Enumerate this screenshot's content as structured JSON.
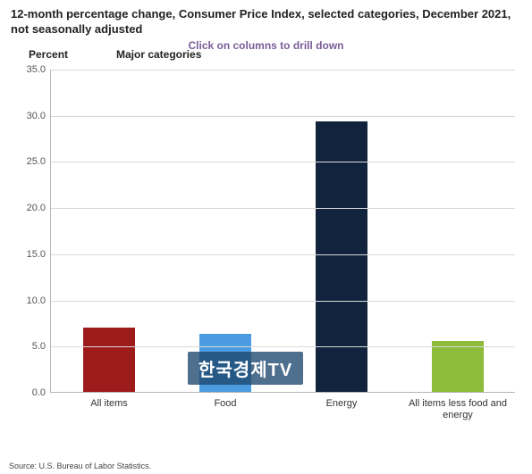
{
  "title": "12-month percentage change, Consumer Price Index, selected categories, December 2021, not seasonally adjusted",
  "drill_hint": "Click on columns to drill down",
  "legend_label": "Major categories",
  "ylabel": "Percent",
  "source": "Source: U.S. Bureau of Labor Statistics.",
  "watermark": "한국경제TV",
  "chart": {
    "type": "bar",
    "ylim": [
      0,
      35
    ],
    "ytick_step": 5,
    "yticks": [
      "0.0",
      "5.0",
      "10.0",
      "15.0",
      "20.0",
      "25.0",
      "30.0",
      "35.0"
    ],
    "background_color": "#ffffff",
    "grid_color": "#d9d9d9",
    "axis_color": "#b5b5b5",
    "label_fontsize": 11,
    "title_fontsize": 13,
    "bar_width_pct": 11,
    "bar_gap_pct": 25,
    "categories": [
      {
        "label": "All items",
        "value": 7.0,
        "color": "#9e1b1b"
      },
      {
        "label": "Food",
        "value": 6.3,
        "color": "#4a9be0"
      },
      {
        "label": "Energy",
        "value": 29.3,
        "color": "#12233d"
      },
      {
        "label": "All items less food and energy",
        "value": 5.5,
        "color": "#8dbb3a"
      }
    ]
  },
  "watermark_style": {
    "bg": "rgba(30,70,110,0.78)",
    "text_color": "#ffffff"
  }
}
